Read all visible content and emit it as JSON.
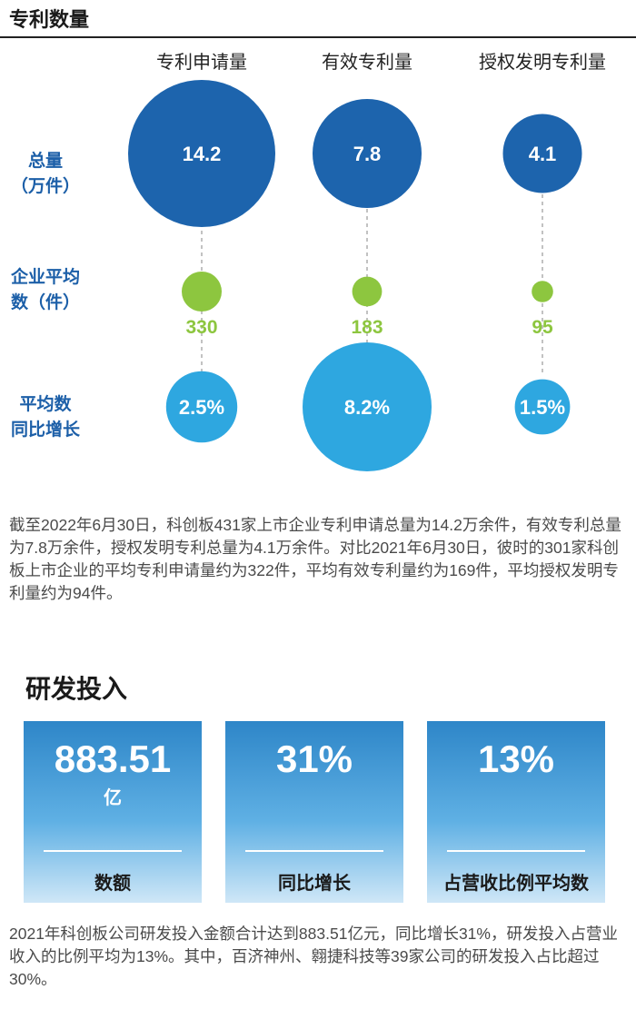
{
  "patent_section": {
    "title": "专利数量"
  },
  "chart_data": {
    "type": "bubble",
    "columns": [
      "专利申请量",
      "有效专利量",
      "授权发明专利量"
    ],
    "rows": [
      {
        "label_lines": [
          "总量",
          "（万件）"
        ],
        "values": [
          14.2,
          7.8,
          4.1
        ],
        "labels": [
          "14.2",
          "7.8",
          "4.1"
        ],
        "color": "#1d64ad",
        "label_color": "#ffffff",
        "label_position": "inside"
      },
      {
        "label_lines": [
          "企业平均",
          "数（件）"
        ],
        "values": [
          330,
          183,
          95
        ],
        "labels": [
          "330",
          "183",
          "95"
        ],
        "color": "#8dc63f",
        "label_color": "#8dc63f",
        "label_position": "below"
      },
      {
        "label_lines": [
          "平均数",
          "同比增长"
        ],
        "values": [
          2.5,
          8.2,
          1.5
        ],
        "labels": [
          "2.5%",
          "8.2%",
          "1.5%"
        ],
        "color": "#2ea7e0",
        "label_color": "#ffffff",
        "label_position": "inside"
      }
    ]
  },
  "patent_text": "截至2022年6月30日，科创板431家上市企业专利申请总量为14.2万余件，有效专利总量为7.8万余件，授权发明专利总量为4.1万余件。对比2021年6月30日，彼时的301家科创板上市企业的平均专利申请量约为322件，平均有效专利量约为169件，平均授权发明专利量约为94件。",
  "rd_section": {
    "title": "研发投入",
    "cards": [
      {
        "value": "883.51",
        "unit": "亿",
        "label": "数额"
      },
      {
        "value": "31%",
        "unit": "",
        "label": "同比增长"
      },
      {
        "value": "13%",
        "unit": "",
        "label": "占营收比例平均数"
      }
    ]
  },
  "rd_text": "2021年科创板公司研发投入金额合计达到883.51亿元，同比增长31%，研发投入占营业收入的比例平均为13%。其中，百济神州、翱捷科技等39家公司的研发投入占比超过30%。"
}
